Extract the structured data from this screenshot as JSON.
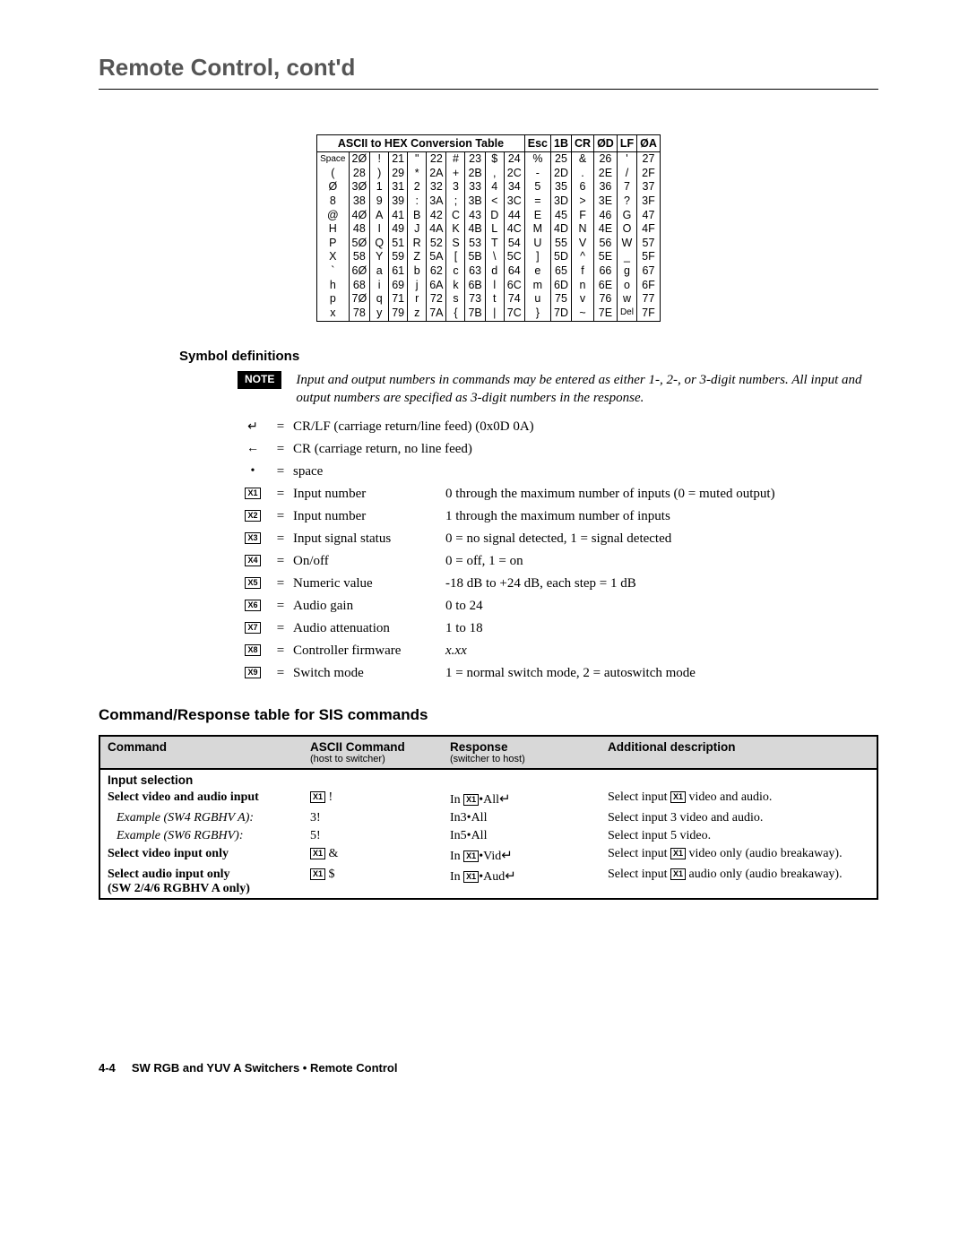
{
  "page_title": "Remote Control, cont'd",
  "ascii_header_main": "ASCII to HEX  Conversion Table",
  "ascii_extra_headers": [
    [
      "Esc",
      "1B"
    ],
    [
      "CR",
      "ØD"
    ],
    [
      "LF",
      "ØA"
    ]
  ],
  "ascii_rows": [
    [
      [
        "Space",
        "2Ø"
      ],
      [
        "!",
        "21"
      ],
      [
        "\"",
        "22"
      ],
      [
        "#",
        "23"
      ],
      [
        "$",
        "24"
      ],
      [
        "%",
        "25"
      ],
      [
        "&",
        "26"
      ],
      [
        "'",
        "27"
      ]
    ],
    [
      [
        "(",
        "28"
      ],
      [
        ")",
        "29"
      ],
      [
        "*",
        "2A"
      ],
      [
        "+",
        "2B"
      ],
      [
        ",",
        "2C"
      ],
      [
        "-",
        "2D"
      ],
      [
        ".",
        "2E"
      ],
      [
        "/",
        "2F"
      ]
    ],
    [
      [
        "Ø",
        "3Ø"
      ],
      [
        "1",
        "31"
      ],
      [
        "2",
        "32"
      ],
      [
        "3",
        "33"
      ],
      [
        "4",
        "34"
      ],
      [
        "5",
        "35"
      ],
      [
        "6",
        "36"
      ],
      [
        "7",
        "37"
      ]
    ],
    [
      [
        "8",
        "38"
      ],
      [
        "9",
        "39"
      ],
      [
        ":",
        "3A"
      ],
      [
        ";",
        "3B"
      ],
      [
        "<",
        "3C"
      ],
      [
        "=",
        "3D"
      ],
      [
        ">",
        "3E"
      ],
      [
        "?",
        "3F"
      ]
    ],
    [
      [
        "@",
        "4Ø"
      ],
      [
        "A",
        "41"
      ],
      [
        "B",
        "42"
      ],
      [
        "C",
        "43"
      ],
      [
        "D",
        "44"
      ],
      [
        "E",
        "45"
      ],
      [
        "F",
        "46"
      ],
      [
        "G",
        "47"
      ]
    ],
    [
      [
        "H",
        "48"
      ],
      [
        "I",
        "49"
      ],
      [
        "J",
        "4A"
      ],
      [
        "K",
        "4B"
      ],
      [
        "L",
        "4C"
      ],
      [
        "M",
        "4D"
      ],
      [
        "N",
        "4E"
      ],
      [
        "O",
        "4F"
      ]
    ],
    [
      [
        "P",
        "5Ø"
      ],
      [
        "Q",
        "51"
      ],
      [
        "R",
        "52"
      ],
      [
        "S",
        "53"
      ],
      [
        "T",
        "54"
      ],
      [
        "U",
        "55"
      ],
      [
        "V",
        "56"
      ],
      [
        "W",
        "57"
      ]
    ],
    [
      [
        "X",
        "58"
      ],
      [
        "Y",
        "59"
      ],
      [
        "Z",
        "5A"
      ],
      [
        "[",
        "5B"
      ],
      [
        "\\",
        "5C"
      ],
      [
        "]",
        "5D"
      ],
      [
        "^",
        "5E"
      ],
      [
        "_",
        "5F"
      ]
    ],
    [
      [
        "`",
        "6Ø"
      ],
      [
        "a",
        "61"
      ],
      [
        "b",
        "62"
      ],
      [
        "c",
        "63"
      ],
      [
        "d",
        "64"
      ],
      [
        "e",
        "65"
      ],
      [
        "f",
        "66"
      ],
      [
        "g",
        "67"
      ]
    ],
    [
      [
        "h",
        "68"
      ],
      [
        "i",
        "69"
      ],
      [
        "j",
        "6A"
      ],
      [
        "k",
        "6B"
      ],
      [
        "l",
        "6C"
      ],
      [
        "m",
        "6D"
      ],
      [
        "n",
        "6E"
      ],
      [
        "o",
        "6F"
      ]
    ],
    [
      [
        "p",
        "7Ø"
      ],
      [
        "q",
        "71"
      ],
      [
        "r",
        "72"
      ],
      [
        "s",
        "73"
      ],
      [
        "t",
        "74"
      ],
      [
        "u",
        "75"
      ],
      [
        "v",
        "76"
      ],
      [
        "w",
        "77"
      ]
    ],
    [
      [
        "x",
        "78"
      ],
      [
        "y",
        "79"
      ],
      [
        "z",
        "7A"
      ],
      [
        "{",
        "7B"
      ],
      [
        "|",
        "7C"
      ],
      [
        "}",
        "7D"
      ],
      [
        "~",
        "7E"
      ],
      [
        "Del",
        "7F"
      ]
    ]
  ],
  "sym_heading": "Symbol definitions",
  "note_label": "NOTE",
  "note_text": "Input and output numbers in commands may be entered as either 1-, 2-, or 3-digit numbers.  All input and output numbers are specified as 3-digit numbers in the response.",
  "defs": [
    {
      "sym": "↵",
      "name": "CR/LF (carriage return/line feed) (0x0D 0A)",
      "desc": ""
    },
    {
      "sym": "←",
      "name": "CR (carriage return, no line feed)",
      "desc": ""
    },
    {
      "sym": "•",
      "name": "space",
      "desc": ""
    },
    {
      "sym": "X1",
      "box": true,
      "name": "Input number",
      "desc": "0 through the maximum number of inputs (0 = muted output)"
    },
    {
      "sym": "X2",
      "box": true,
      "name": "Input number",
      "desc": "1 through the maximum number of inputs"
    },
    {
      "sym": "X3",
      "box": true,
      "name": "Input signal status",
      "desc": "0 = no signal detected, 1 = signal detected"
    },
    {
      "sym": "X4",
      "box": true,
      "name": "On/off",
      "desc": "0 = off, 1 = on"
    },
    {
      "sym": "X5",
      "box": true,
      "name": "Numeric value",
      "desc": "-18 dB to +24 dB, each step = 1 dB"
    },
    {
      "sym": "X6",
      "box": true,
      "name": "Audio gain",
      "desc": "0 to 24"
    },
    {
      "sym": "X7",
      "box": true,
      "name": "Audio attenuation",
      "desc": "1 to 18"
    },
    {
      "sym": "X8",
      "box": true,
      "name": "Controller firmware",
      "desc": "x.xx",
      "desc_italic": true
    },
    {
      "sym": "X9",
      "box": true,
      "name": "Switch mode",
      "desc": "1 = normal switch mode, 2 = autoswitch mode"
    }
  ],
  "cmd_heading": "Command/Response table for SIS commands",
  "cmd_cols": {
    "c1": "Command",
    "c2": "ASCII Command",
    "c2s": "(host to switcher)",
    "c3": "Response",
    "c3s": "(switcher to host)",
    "c4": "Additional description"
  },
  "cmd_section": "Input selection",
  "cmd_rows": [
    {
      "name": "Select video and audio input",
      "ascii": "[X1] !",
      "resp": "In [X1]•All↵",
      "desc": "Select input [X1] video and audio."
    },
    {
      "name": "Example (SW4 RGBHV A):",
      "example": true,
      "ascii": "3!",
      "resp": "In3•All",
      "desc": "Select input 3 video and audio."
    },
    {
      "name": "Example (SW6 RGBHV):",
      "example": true,
      "ascii": "5!",
      "resp": "In5•All",
      "desc": "Select input 5 video."
    },
    {
      "name": "Select video input only",
      "ascii": "[X1] &",
      "resp": "In [X1]•Vid↵",
      "desc": "Select input [X1] video only (audio breakaway)."
    },
    {
      "name": "Select audio input only\n(SW 2/4/6 RGBHV A only)",
      "ascii": "[X1] $",
      "resp": "In [X1]•Aud↵",
      "desc": "Select input [X1] audio only (audio breakaway)."
    }
  ],
  "footer_page": "4-4",
  "footer_text": "SW RGB and YUV A Switchers • Remote Control"
}
